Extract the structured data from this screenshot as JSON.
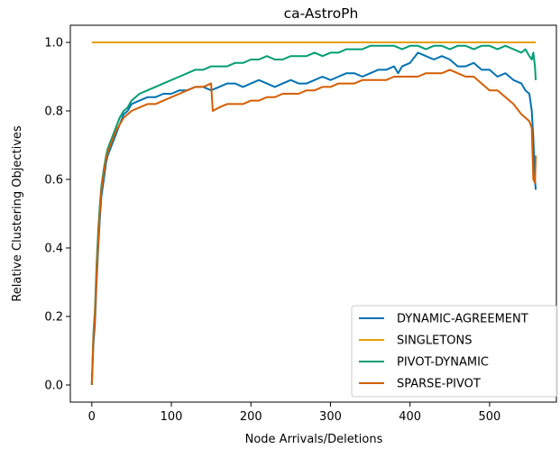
{
  "chart_data": {
    "type": "line",
    "title": "ca-AstroPh",
    "xlabel": "Node Arrivals/Deletions",
    "ylabel": "Relative Clustering Objectives",
    "xlim": [
      -27,
      584
    ],
    "ylim": [
      -0.05,
      1.05
    ],
    "xticks": [
      0,
      100,
      200,
      300,
      400,
      500
    ],
    "yticks": [
      0.0,
      0.2,
      0.4,
      0.6,
      0.8,
      1.0
    ],
    "ytick_labels": [
      "0.0",
      "0.2",
      "0.4",
      "0.6",
      "0.8",
      "1.0"
    ],
    "grid": false,
    "legend_position": "lower-right",
    "series": [
      {
        "name": "DYNAMIC-AGREEMENT",
        "color": "#0072b2",
        "x": [
          0,
          2,
          4,
          6,
          8,
          10,
          12,
          15,
          18,
          20,
          25,
          30,
          35,
          40,
          45,
          50,
          60,
          70,
          80,
          90,
          100,
          110,
          120,
          130,
          140,
          150,
          160,
          170,
          180,
          190,
          200,
          210,
          220,
          230,
          240,
          250,
          260,
          270,
          280,
          290,
          300,
          310,
          320,
          330,
          340,
          350,
          360,
          370,
          380,
          385,
          390,
          400,
          410,
          420,
          430,
          440,
          450,
          460,
          470,
          480,
          490,
          500,
          510,
          520,
          530,
          540,
          545,
          550,
          553,
          555,
          557,
          558
        ],
        "y": [
          0.0,
          0.12,
          0.18,
          0.3,
          0.4,
          0.48,
          0.55,
          0.6,
          0.65,
          0.67,
          0.7,
          0.73,
          0.76,
          0.79,
          0.8,
          0.82,
          0.83,
          0.84,
          0.84,
          0.85,
          0.85,
          0.86,
          0.86,
          0.87,
          0.87,
          0.86,
          0.87,
          0.88,
          0.88,
          0.87,
          0.88,
          0.89,
          0.88,
          0.87,
          0.88,
          0.89,
          0.88,
          0.88,
          0.89,
          0.9,
          0.89,
          0.9,
          0.91,
          0.91,
          0.9,
          0.91,
          0.92,
          0.92,
          0.93,
          0.91,
          0.93,
          0.94,
          0.97,
          0.96,
          0.95,
          0.96,
          0.95,
          0.93,
          0.93,
          0.94,
          0.92,
          0.92,
          0.9,
          0.91,
          0.89,
          0.88,
          0.86,
          0.85,
          0.8,
          0.72,
          0.6,
          0.57
        ]
      },
      {
        "name": "SINGLETONS",
        "color": "#e69f00",
        "x": [
          0,
          558
        ],
        "y": [
          1.0,
          1.0
        ]
      },
      {
        "name": "PIVOT-DYNAMIC",
        "color": "#009e73",
        "x": [
          0,
          2,
          4,
          6,
          8,
          10,
          12,
          15,
          18,
          20,
          25,
          30,
          35,
          40,
          45,
          50,
          60,
          70,
          80,
          90,
          100,
          110,
          120,
          130,
          140,
          150,
          160,
          170,
          180,
          190,
          200,
          210,
          220,
          230,
          240,
          250,
          260,
          270,
          280,
          290,
          300,
          310,
          320,
          330,
          340,
          350,
          360,
          370,
          380,
          390,
          400,
          410,
          420,
          430,
          440,
          450,
          460,
          470,
          480,
          490,
          500,
          510,
          520,
          530,
          540,
          545,
          550,
          553,
          555,
          557,
          558
        ],
        "y": [
          0.0,
          0.15,
          0.22,
          0.35,
          0.45,
          0.52,
          0.58,
          0.63,
          0.67,
          0.69,
          0.72,
          0.75,
          0.78,
          0.8,
          0.81,
          0.83,
          0.85,
          0.86,
          0.87,
          0.88,
          0.89,
          0.9,
          0.91,
          0.92,
          0.92,
          0.93,
          0.93,
          0.93,
          0.94,
          0.94,
          0.95,
          0.95,
          0.96,
          0.95,
          0.95,
          0.96,
          0.96,
          0.96,
          0.97,
          0.96,
          0.97,
          0.97,
          0.98,
          0.98,
          0.98,
          0.99,
          0.99,
          0.99,
          0.99,
          0.98,
          0.99,
          0.99,
          0.98,
          0.99,
          0.99,
          0.98,
          0.99,
          0.99,
          0.98,
          0.99,
          0.99,
          0.98,
          0.99,
          0.98,
          0.97,
          0.98,
          0.96,
          0.95,
          0.97,
          0.93,
          0.89
        ]
      },
      {
        "name": "SPARSE-PIVOT",
        "color": "#d55e00",
        "x": [
          0,
          2,
          4,
          6,
          8,
          10,
          12,
          15,
          18,
          20,
          25,
          30,
          35,
          40,
          45,
          50,
          60,
          70,
          80,
          90,
          100,
          110,
          120,
          130,
          140,
          150,
          152,
          160,
          170,
          180,
          190,
          200,
          210,
          220,
          230,
          240,
          250,
          260,
          270,
          280,
          290,
          300,
          310,
          320,
          330,
          340,
          350,
          360,
          370,
          380,
          390,
          400,
          410,
          420,
          430,
          440,
          450,
          460,
          470,
          480,
          490,
          500,
          510,
          520,
          530,
          540,
          545,
          550,
          553,
          555,
          557,
          558
        ],
        "y": [
          0.0,
          0.14,
          0.2,
          0.32,
          0.42,
          0.5,
          0.57,
          0.62,
          0.66,
          0.68,
          0.71,
          0.74,
          0.76,
          0.78,
          0.79,
          0.8,
          0.81,
          0.82,
          0.82,
          0.83,
          0.84,
          0.85,
          0.86,
          0.87,
          0.87,
          0.88,
          0.8,
          0.81,
          0.82,
          0.82,
          0.82,
          0.83,
          0.83,
          0.84,
          0.84,
          0.85,
          0.85,
          0.85,
          0.86,
          0.86,
          0.87,
          0.87,
          0.88,
          0.88,
          0.88,
          0.89,
          0.89,
          0.89,
          0.89,
          0.9,
          0.9,
          0.9,
          0.9,
          0.91,
          0.91,
          0.91,
          0.92,
          0.91,
          0.9,
          0.9,
          0.88,
          0.86,
          0.86,
          0.84,
          0.82,
          0.79,
          0.78,
          0.77,
          0.75,
          0.6,
          0.59,
          0.67
        ]
      }
    ]
  }
}
